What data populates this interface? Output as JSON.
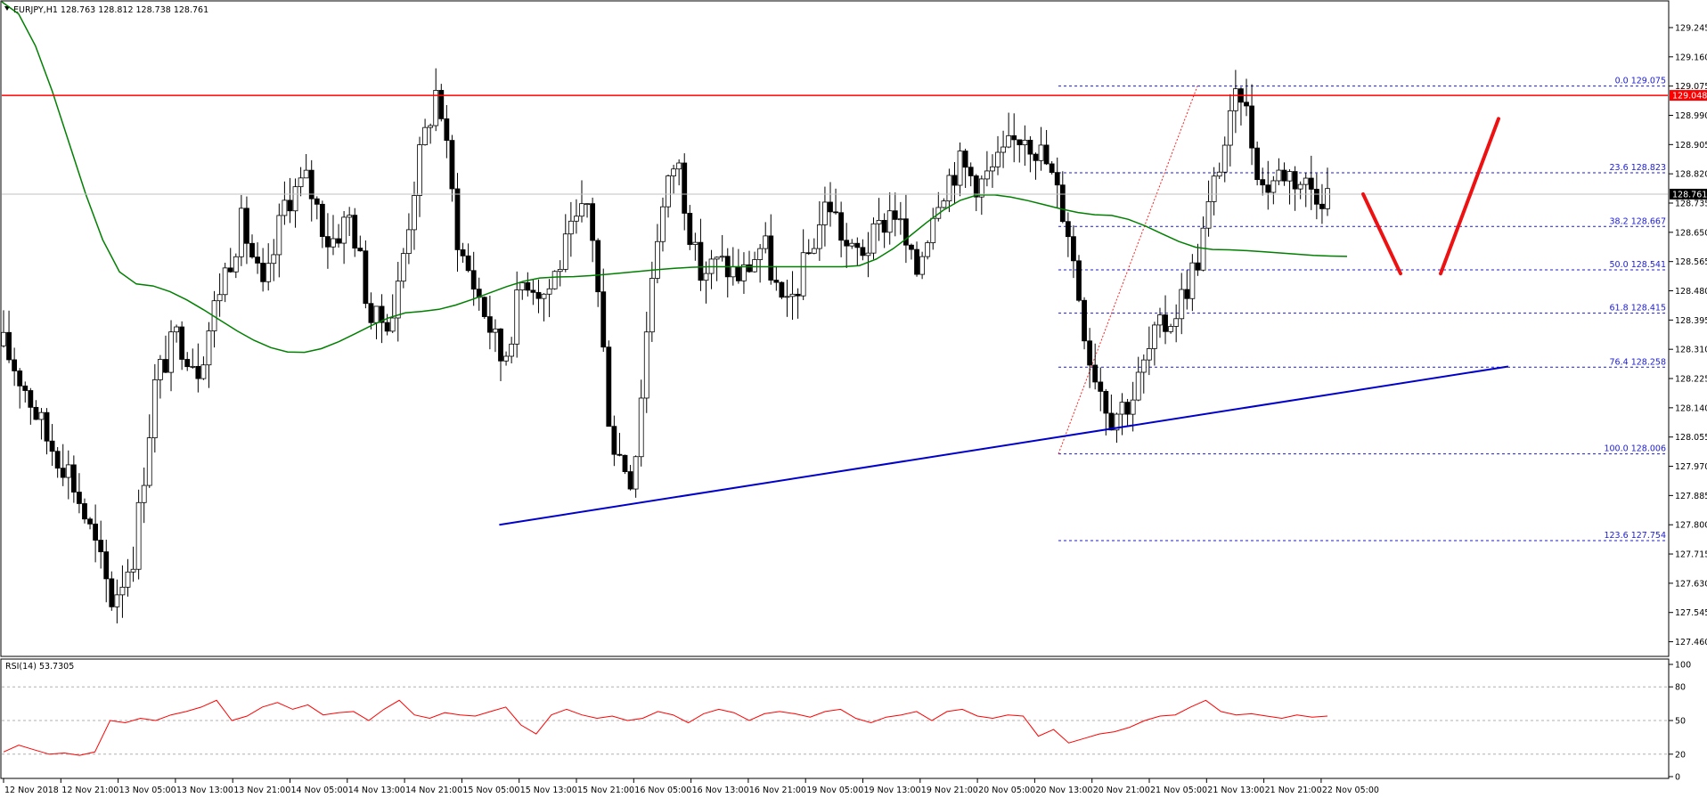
{
  "header": {
    "symbol_info": "EURJPY,H1  128.763 128.812 128.738 128.761",
    "symbol_icon": "triangle-down-icon"
  },
  "colors": {
    "background": "#ffffff",
    "bull_candle": "#ffffff",
    "bear_candle": "#000000",
    "moving_average": "#008000",
    "resistance": "#ff0000",
    "trendline": "#0000cc",
    "fibonacci": "#1c1cd6",
    "rsi": "#ff0000",
    "forecast": "#ee1111"
  },
  "chart_data": [
    {
      "type": "candlestick",
      "symbol": "EURJPY",
      "timeframe": "H1",
      "ylim": [
        127.42,
        129.32
      ],
      "y_ticks": [
        "129.245",
        "129.160",
        "129.075",
        "128.990",
        "128.905",
        "128.820",
        "128.735",
        "128.650",
        "128.565",
        "128.480",
        "128.395",
        "128.310",
        "128.225",
        "128.140",
        "128.055",
        "127.970",
        "127.885",
        "127.800",
        "127.715",
        "127.630",
        "127.545",
        "127.460"
      ],
      "x_ticks": [
        "12 Nov 2018",
        "12 Nov 21:00",
        "13 Nov 05:00",
        "13 Nov 13:00",
        "13 Nov 21:00",
        "14 Nov 05:00",
        "14 Nov 13:00",
        "14 Nov 21:00",
        "15 Nov 05:00",
        "15 Nov 13:00",
        "15 Nov 21:00",
        "16 Nov 05:00",
        "16 Nov 13:00",
        "16 Nov 21:00",
        "19 Nov 05:00",
        "19 Nov 13:00",
        "19 Nov 21:00",
        "20 Nov 05:00",
        "20 Nov 13:00",
        "20 Nov 21:00",
        "21 Nov 05:00",
        "21 Nov 13:00",
        "21 Nov 21:00",
        "22 Nov 05:00"
      ],
      "close_path": [
        128.32,
        128.2,
        128.05,
        127.96,
        127.78,
        127.58,
        127.72,
        128.22,
        128.35,
        128.26,
        128.5,
        128.68,
        128.46,
        128.75,
        128.8,
        128.62,
        128.7,
        128.38,
        128.42,
        128.82,
        129.08,
        128.6,
        128.45,
        128.27,
        128.53,
        128.47,
        128.62,
        128.74,
        128.05,
        127.93,
        128.62,
        128.88,
        128.53,
        128.56,
        128.52,
        128.62,
        128.4,
        128.57,
        128.75,
        128.58,
        128.62,
        128.73,
        128.52,
        128.76,
        128.85,
        128.79,
        128.86,
        128.95,
        128.86,
        128.68,
        128.3,
        128.12,
        128.17,
        128.34,
        128.42,
        128.57,
        128.85,
        129.07,
        128.78,
        128.83,
        128.79,
        128.76
      ],
      "series": [
        {
          "name": "",
          "style": "moving-average",
          "x_frac": [
            0.0,
            0.1,
            0.22,
            0.31,
            0.41,
            0.53,
            0.63,
            0.73,
            0.82,
            0.9,
            1.0
          ],
          "y": [
            129.32,
            128.5,
            128.3,
            128.42,
            128.52,
            128.55,
            128.55,
            128.76,
            128.7,
            128.6,
            128.58
          ]
        }
      ],
      "resistance": {
        "value": 129.048,
        "label": "129.048"
      },
      "trendline": {
        "from": [
          "15 Nov 05:00",
          127.8
        ],
        "to": [
          "22 Nov 05:00",
          128.26
        ]
      },
      "fibonacci": [
        {
          "level": "0.0",
          "price": "129.075",
          "value": 129.075
        },
        {
          "level": "23.6",
          "price": "128.823",
          "value": 128.823
        },
        {
          "level": "38.2",
          "price": "128.667",
          "value": 128.667
        },
        {
          "level": "50.0",
          "price": "128.541",
          "value": 128.541
        },
        {
          "level": "61.8",
          "price": "128.415",
          "value": 128.415
        },
        {
          "level": "76.4",
          "price": "128.258",
          "value": 128.258
        },
        {
          "level": "100.0",
          "price": "128.006",
          "value": 128.006
        },
        {
          "level": "123.6",
          "price": "127.754",
          "value": 127.754
        }
      ],
      "fib_anchor": {
        "low": 128.006,
        "high": 129.075
      },
      "current_price": {
        "value": 128.761,
        "label": "128.761"
      },
      "forecast": {
        "down_to": 128.53,
        "up_to": 128.98
      }
    },
    {
      "type": "line",
      "title": "RSI(14) 53.7305",
      "ylim": [
        0,
        100
      ],
      "y_ticks": [
        "100",
        "80",
        "50",
        "20",
        "0"
      ],
      "levels": [
        80,
        50,
        20
      ],
      "values": [
        22,
        28,
        24,
        20,
        21,
        19,
        22,
        50,
        48,
        52,
        50,
        55,
        58,
        62,
        68,
        50,
        54,
        62,
        66,
        60,
        64,
        55,
        57,
        58,
        50,
        60,
        68,
        55,
        52,
        57,
        55,
        54,
        58,
        62,
        46,
        38,
        55,
        60,
        55,
        52,
        54,
        50,
        52,
        58,
        55,
        48,
        56,
        60,
        57,
        50,
        56,
        58,
        56,
        53,
        58,
        60,
        52,
        48,
        53,
        55,
        58,
        50,
        58,
        60,
        54,
        52,
        55,
        54,
        36,
        42,
        30,
        34,
        38,
        40,
        44,
        50,
        54,
        55,
        62,
        68,
        58,
        55,
        56,
        54,
        52,
        55,
        53,
        54
      ]
    }
  ]
}
